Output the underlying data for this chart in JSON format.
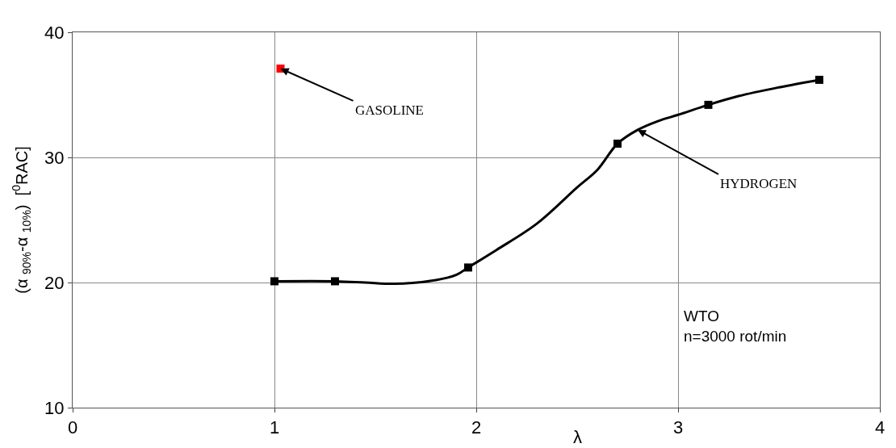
{
  "chart_data": {
    "type": "line",
    "xlabel": "λ",
    "ylabel": "(α $_{90%}$-α $_{10%}$)  [$^{0}$RAC]",
    "xlim": [
      0,
      4
    ],
    "xticks": [
      0,
      1,
      2,
      3,
      4
    ],
    "ylim": [
      10,
      40
    ],
    "yticks": [
      10,
      20,
      30,
      40
    ],
    "grid": true,
    "series": [
      {
        "color": "#000000",
        "marker": "none",
        "line_style": "solid",
        "x": [
          1.0,
          1.3,
          1.45,
          1.6,
          1.8,
          1.9,
          1.96,
          2.1,
          2.3,
          2.5,
          2.6,
          2.7,
          2.8,
          2.9,
          3.0,
          3.15,
          3.3,
          3.5,
          3.7
        ],
        "values": [
          20.1,
          20.1,
          20.0,
          19.9,
          20.2,
          20.6,
          21.2,
          22.6,
          24.7,
          27.6,
          29.0,
          31.1,
          32.2,
          32.9,
          33.4,
          34.2,
          34.9,
          35.6,
          36.2
        ]
      },
      {
        "type": "scatter",
        "color": "#000000",
        "marker": "square",
        "x": [
          1.0,
          1.3,
          1.96,
          2.7,
          3.15,
          3.7
        ],
        "values": [
          20.1,
          20.1,
          21.2,
          31.1,
          34.2,
          36.2
        ]
      },
      {
        "type": "scatter",
        "color": "#ff0000",
        "marker": "square",
        "x": [
          1.03
        ],
        "values": [
          37.1
        ]
      }
    ],
    "annotations": [
      {
        "text": "GASOLINE",
        "x": 1.03,
        "y": 37.1
      },
      {
        "text": "HYDROGEN",
        "x": 2.8,
        "y": 32.2
      },
      "WTO\nn=3000 rot/min"
    ]
  }
}
